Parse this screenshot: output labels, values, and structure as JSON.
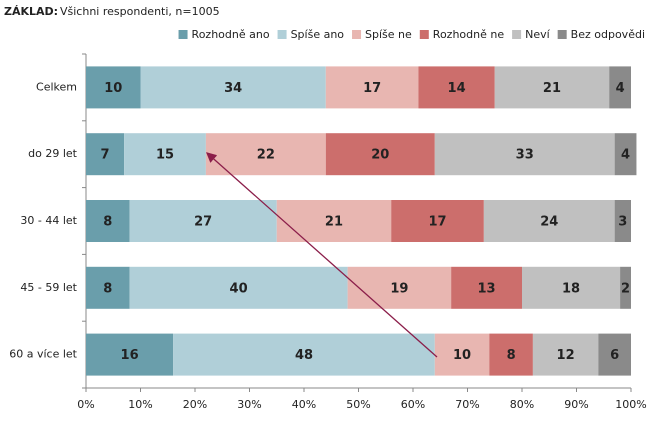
{
  "chart_data": {
    "type": "stacked_barh",
    "subtitle_label": "ZÁKLAD:",
    "subtitle": "Všichni respondenti, n=1005",
    "categories": [
      "Celkem",
      "do 29 let",
      "30 - 44 let",
      "45 - 59 let",
      "60 a více let"
    ],
    "series": [
      {
        "name": "Rozhodně ano",
        "color": "#6a9eab",
        "values": [
          10,
          7,
          8,
          8,
          16
        ]
      },
      {
        "name": "Spíše ano",
        "color": "#b0cfd8",
        "values": [
          34,
          15,
          27,
          40,
          48
        ]
      },
      {
        "name": "Spíše ne",
        "color": "#e8b6b1",
        "values": [
          17,
          22,
          21,
          19,
          10
        ]
      },
      {
        "name": "Rozhodně ne",
        "color": "#cc6e6c",
        "values": [
          14,
          20,
          17,
          13,
          8
        ]
      },
      {
        "name": "Neví",
        "color": "#c0c0c0",
        "values": [
          21,
          33,
          24,
          18,
          12
        ]
      },
      {
        "name": "Bez odpovědi",
        "color": "#8a8a8a",
        "values": [
          4,
          4,
          3,
          2,
          6
        ]
      }
    ],
    "xlim": [
      0,
      100
    ],
    "xticks": [
      {
        "value": 0,
        "label": "0%"
      },
      {
        "value": 10,
        "label": "10%"
      },
      {
        "value": 20,
        "label": "20%"
      },
      {
        "value": 30,
        "label": "30%"
      },
      {
        "value": 40,
        "label": "40%"
      },
      {
        "value": 50,
        "label": "50%"
      },
      {
        "value": 60,
        "label": "60%"
      },
      {
        "value": 70,
        "label": "70%"
      },
      {
        "value": 80,
        "label": "80%"
      },
      {
        "value": 90,
        "label": "90%"
      },
      {
        "value": 100,
        "label": "100%"
      }
    ]
  }
}
